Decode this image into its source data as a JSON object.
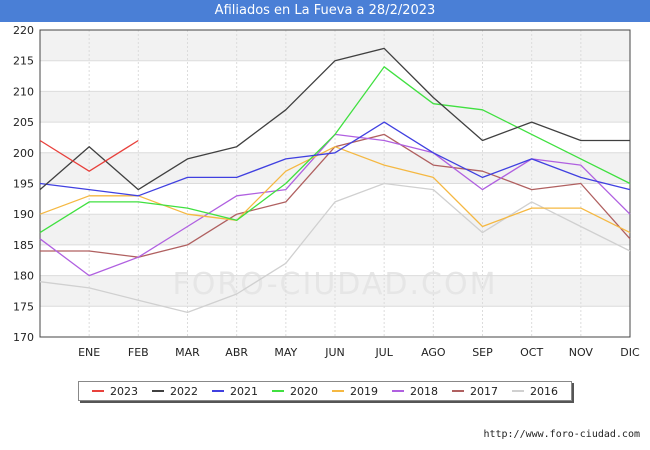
{
  "header": {
    "title": "Afiliados en La Fueva a 28/2/2023"
  },
  "footer": {
    "source": "http://www.foro-ciudad.com"
  },
  "watermark": "FORO-CIUDAD.COM",
  "chart_data": {
    "type": "line",
    "title": "Afiliados en La Fueva a 28/2/2023",
    "categories": [
      "",
      "ENE",
      "FEB",
      "MAR",
      "ABR",
      "MAY",
      "JUN",
      "JUL",
      "AGO",
      "SEP",
      "OCT",
      "NOV",
      "DIC"
    ],
    "ylim": [
      170,
      220
    ],
    "yticks": [
      170,
      175,
      180,
      185,
      190,
      195,
      200,
      205,
      210,
      215,
      220
    ],
    "grid": true,
    "legend_position": "bottom",
    "series": [
      {
        "name": "2023",
        "color": "#e8413c",
        "values": [
          202,
          197,
          202,
          null,
          null,
          null,
          null,
          null,
          null,
          null,
          null,
          null,
          null
        ]
      },
      {
        "name": "2022",
        "color": "#404040",
        "values": [
          194,
          201,
          194,
          199,
          201,
          207,
          215,
          217,
          209,
          202,
          205,
          202,
          202
        ]
      },
      {
        "name": "2021",
        "color": "#4040e0",
        "values": [
          195,
          194,
          193,
          196,
          196,
          199,
          200,
          205,
          200,
          196,
          199,
          196,
          194
        ]
      },
      {
        "name": "2020",
        "color": "#40e040",
        "values": [
          187,
          192,
          192,
          191,
          189,
          195,
          203,
          214,
          208,
          207,
          203,
          199,
          195
        ]
      },
      {
        "name": "2019",
        "color": "#f5b842",
        "values": [
          190,
          193,
          193,
          190,
          189,
          197,
          201,
          198,
          196,
          188,
          191,
          191,
          187
        ]
      },
      {
        "name": "2018",
        "color": "#b060e0",
        "values": [
          186,
          180,
          183,
          188,
          193,
          194,
          203,
          202,
          200,
          194,
          199,
          198,
          190
        ]
      },
      {
        "name": "2017",
        "color": "#b06060",
        "values": [
          184,
          184,
          183,
          185,
          190,
          192,
          201,
          203,
          198,
          197,
          194,
          195,
          186
        ]
      },
      {
        "name": "2016",
        "color": "#d0d0d0",
        "values": [
          179,
          178,
          176,
          174,
          177,
          182,
          192,
          195,
          194,
          187,
          192,
          188,
          184
        ]
      }
    ]
  }
}
